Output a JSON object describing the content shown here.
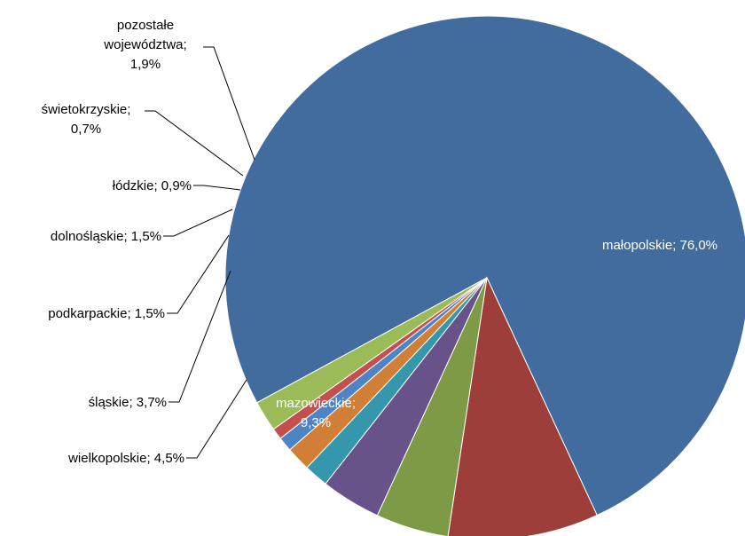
{
  "chart_data": {
    "type": "pie",
    "slices": [
      {
        "name": "małopolskie",
        "value": 76.0,
        "color": "#416C9D",
        "label_lines": [
          "małopolskie; 76,0%"
        ]
      },
      {
        "name": "mazowieckie",
        "value": 9.3,
        "color": "#9D3E3B",
        "label_lines": [
          "mazowieckie;",
          "9,3%"
        ]
      },
      {
        "name": "wielkopolskie",
        "value": 4.5,
        "color": "#7E9A47",
        "label_lines": [
          "wielkopolskie; 4,5%"
        ]
      },
      {
        "name": "śląskie",
        "value": 3.7,
        "color": "#67538A",
        "label_lines": [
          "śląskie; 3,7%"
        ]
      },
      {
        "name": "podkarpackie",
        "value": 1.5,
        "color": "#3597AC",
        "label_lines": [
          "podkarpackie; 1,5%"
        ]
      },
      {
        "name": "dolnośląskie",
        "value": 1.5,
        "color": "#D17E36",
        "label_lines": [
          "dolnośląskie; 1,5%"
        ]
      },
      {
        "name": "łódzkie",
        "value": 0.9,
        "color": "#4F84C4",
        "label_lines": [
          "łódzkie; 0,9%"
        ]
      },
      {
        "name": "świetokrzyskie",
        "value": 0.7,
        "color": "#C4504E",
        "label_lines": [
          "świetokrzyskie;",
          "0,7%"
        ]
      },
      {
        "name": "pozostałe województwa",
        "value": 1.9,
        "color": "#9BBB59",
        "label_lines": [
          "pozostałe",
          "województwa;",
          "1,9%"
        ]
      }
    ]
  }
}
